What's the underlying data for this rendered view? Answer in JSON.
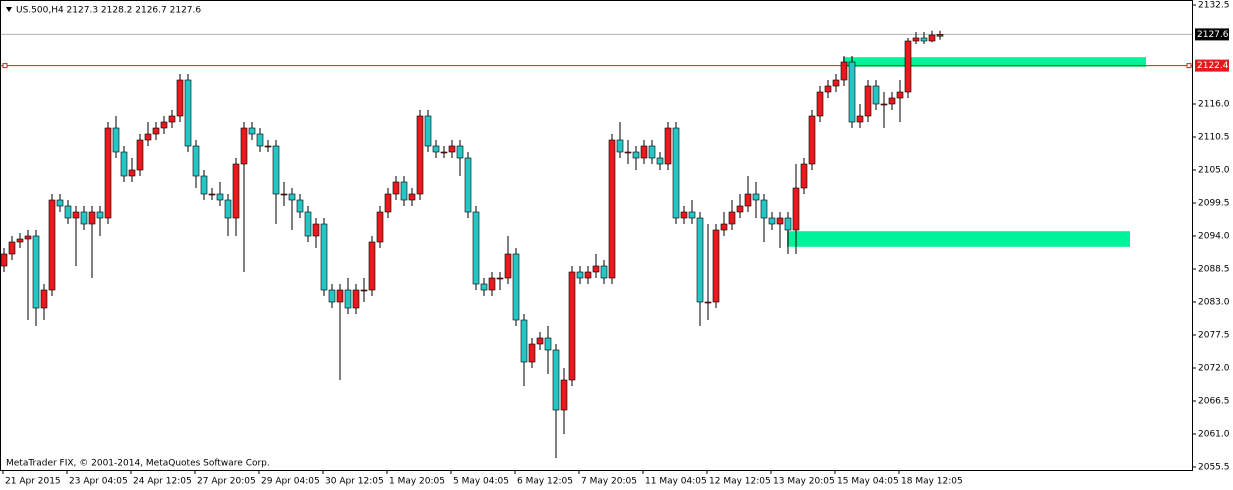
{
  "chart_data": {
    "type": "candlestick",
    "title": "US.500,H4  2127.3 2128.2 2126.7 2127.6",
    "footer": "MetaTrader FIX, © 2001-2014, MetaQuotes Software Corp.",
    "up_color": "#e8191c",
    "down_color": "#26c6c6",
    "categories": [
      "21 Apr 2015",
      null,
      null,
      null,
      null,
      null,
      null,
      null,
      "23 Apr 04:05",
      null,
      null,
      null,
      null,
      null,
      null,
      null,
      "24 Apr 12:05",
      null,
      null,
      null,
      null,
      null,
      null,
      null,
      "27 Apr 20:05",
      null,
      null,
      null,
      null,
      null,
      null,
      null,
      "29 Apr 04:05",
      null,
      null,
      null,
      null,
      null,
      null,
      null,
      "30 Apr 12:05",
      null,
      null,
      null,
      null,
      null,
      null,
      null,
      "1 May 20:05",
      null,
      null,
      null,
      null,
      null,
      null,
      null,
      "5 May 04:05",
      null,
      null,
      null,
      null,
      null,
      null,
      null,
      "6 May 12:05",
      null,
      null,
      null,
      null,
      null,
      null,
      null,
      "7 May 20:05",
      null,
      null,
      null,
      null,
      null,
      null,
      null,
      "11 May 04:05",
      null,
      null,
      null,
      null,
      null,
      null,
      null,
      "12 May 12:05",
      null,
      null,
      null,
      null,
      null,
      null,
      null,
      "13 May 20:05",
      null,
      null,
      null,
      null,
      null,
      null,
      null,
      "15 May 04:05",
      null,
      null,
      null,
      null,
      null,
      null,
      null,
      "18 May 12:05",
      null,
      null,
      null,
      null,
      null
    ],
    "open": [
      2089,
      2091,
      2093,
      2093.5,
      2094,
      2082,
      2085,
      2100,
      2099,
      2097,
      2098,
      2096,
      2098,
      2097,
      2112,
      2108,
      2104,
      2105,
      2110,
      2111,
      2112,
      2113,
      2114,
      2120,
      2109,
      2104,
      2101,
      2101,
      2100,
      2097,
      2106,
      2112,
      2111,
      2109,
      2109,
      2101,
      2101,
      2100,
      2098,
      2094,
      2096,
      2085,
      2083,
      2085,
      2082,
      2085,
      2085,
      2093,
      2098,
      2101,
      2103,
      2100,
      2101,
      2114,
      2109,
      2108,
      2108,
      2109,
      2107,
      2098,
      2086,
      2085,
      2087,
      2087,
      2091,
      2080,
      2073,
      2076,
      2077,
      2075,
      2065,
      2070,
      2088,
      2087,
      2088,
      2089,
      2087,
      2110,
      2108,
      2108,
      2107,
      2109,
      2107,
      2106,
      2112,
      2097,
      2098,
      2097,
      2083,
      2083,
      2095,
      2096,
      2098,
      2099,
      2101,
      2100,
      2097,
      2096,
      2097,
      2095,
      2102,
      2106,
      2114,
      2118,
      2119,
      2120,
      2123,
      2113,
      2114,
      2119,
      2116,
      2116,
      2117,
      2118,
      2126.5,
      2127,
      2126.5,
      2127.3
    ],
    "high": [
      2092,
      2094,
      2094.5,
      2095,
      2095,
      2086,
      2101,
      2101,
      2100,
      2099,
      2099,
      2099,
      2099,
      2113,
      2114,
      2109,
      2107,
      2111,
      2113,
      2113,
      2114,
      2115,
      2121,
      2121,
      2110,
      2105,
      2102,
      2103,
      2101,
      2107,
      2113,
      2113,
      2112,
      2110,
      2110,
      2103,
      2102,
      2101,
      2099,
      2097,
      2097,
      2086,
      2086,
      2087,
      2086,
      2087,
      2094,
      2099,
      2102,
      2104,
      2104,
      2102,
      2115,
      2115,
      2110,
      2109,
      2110,
      2110,
      2108,
      2099,
      2087,
      2088,
      2088,
      2094,
      2092,
      2081,
      2077,
      2078,
      2079,
      2076,
      2072,
      2089,
      2089,
      2089,
      2091,
      2090,
      2111,
      2113,
      2110,
      2109,
      2110,
      2110,
      2108,
      2113,
      2113,
      2099,
      2100,
      2098,
      2096,
      2096,
      2098,
      2100,
      2101,
      2104,
      2103,
      2101,
      2098,
      2098,
      2098,
      2106,
      2107,
      2115,
      2119,
      2120,
      2121,
      2124,
      2124,
      2116,
      2120,
      2120,
      2118,
      2118,
      2120,
      2127,
      2128,
      2128,
      2128.2,
      2128.2
    ],
    "low": [
      2088,
      2090,
      2092,
      2080,
      2079,
      2080,
      2084,
      2098,
      2096,
      2089,
      2095,
      2087,
      2094,
      2096,
      2107,
      2103,
      2103,
      2104,
      2109,
      2110,
      2111,
      2112,
      2113,
      2108,
      2102,
      2100,
      2100,
      2099,
      2094,
      2094,
      2088,
      2110,
      2108,
      2108,
      2096,
      2099,
      2095,
      2097,
      2093,
      2092,
      2084,
      2082,
      2070,
      2081,
      2081,
      2083,
      2084,
      2092,
      2097,
      2100,
      2099,
      2099,
      2100,
      2108,
      2107,
      2107,
      2107,
      2104,
      2097,
      2085,
      2084,
      2084,
      2085,
      2086,
      2079,
      2069,
      2072,
      2075,
      2071,
      2057,
      2061,
      2069,
      2086,
      2086,
      2087,
      2086,
      2086,
      2107,
      2106,
      2105,
      2106,
      2106,
      2105,
      2105,
      2096,
      2096,
      2096,
      2079,
      2080,
      2082,
      2094,
      2095,
      2097,
      2098,
      2097,
      2093,
      2095,
      2092,
      2091,
      2091,
      2101,
      2105,
      2113,
      2117,
      2118,
      2119,
      2112,
      2112,
      2113,
      2115,
      2112,
      2115,
      2113,
      2117,
      2126,
      2126,
      2126.3,
      2126.7
    ],
    "close": [
      2091,
      2093,
      2093.5,
      2094,
      2082,
      2085,
      2100,
      2099,
      2097,
      2098,
      2096,
      2098,
      2097,
      2112,
      2108,
      2104,
      2105,
      2110,
      2111,
      2112,
      2113,
      2114,
      2120,
      2109,
      2104,
      2101,
      2101,
      2100,
      2097,
      2106,
      2112,
      2111,
      2109,
      2109,
      2101,
      2101,
      2100,
      2098,
      2094,
      2096,
      2085,
      2083,
      2085,
      2082,
      2085,
      2085,
      2093,
      2098,
      2101,
      2103,
      2100,
      2101,
      2114,
      2109,
      2108,
      2108,
      2109,
      2107,
      2098,
      2086,
      2085,
      2087,
      2087,
      2091,
      2080,
      2073,
      2076,
      2077,
      2075,
      2065,
      2070,
      2088,
      2087,
      2088,
      2089,
      2087,
      2110,
      2108,
      2108,
      2107,
      2109,
      2107,
      2106,
      2112,
      2097,
      2098,
      2097,
      2083,
      2083,
      2095,
      2096,
      2098,
      2099,
      2101,
      2100,
      2097,
      2096,
      2097,
      2095,
      2102,
      2106,
      2114,
      2118,
      2119,
      2120,
      2123,
      2113,
      2114,
      2119,
      2116,
      2116,
      2117,
      2118,
      2126.5,
      2127,
      2126.5,
      2127.5,
      2127.6
    ],
    "ylim": [
      2055.5,
      2132.5
    ],
    "yticks": [
      2132.5,
      {
        "value": 2116,
        "label": "2116.0"
      },
      2110.5,
      {
        "value": 2105,
        "label": "2105.0"
      },
      2099.5,
      {
        "value": 2094,
        "label": "2094.0"
      },
      2088.5,
      {
        "value": 2083,
        "label": "2083.0"
      },
      2077.5,
      {
        "value": 2072,
        "label": "2072.0"
      },
      2066.5,
      {
        "value": 2061,
        "label": "2061.0"
      },
      2055.5
    ],
    "current_price": 2127.6,
    "level": 2122.4,
    "level_color": "#e8191c",
    "zones": [
      {
        "from": 2122.2,
        "to": 2123.8
      },
      {
        "from": 2092.2,
        "to": 2094.8
      }
    ],
    "zone_color": "#00f29a"
  }
}
